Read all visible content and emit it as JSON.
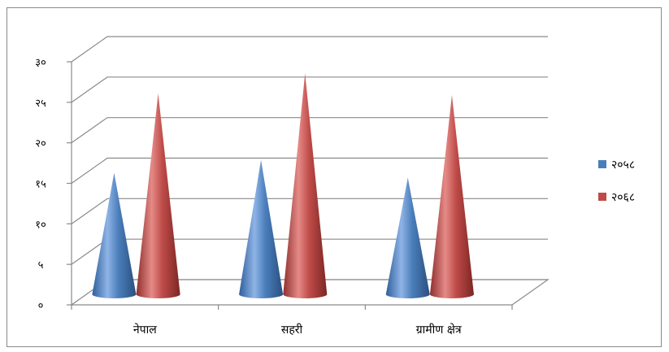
{
  "chart_data": {
    "type": "bar",
    "style": "3d-cone",
    "categories": [
      "नेपाल",
      "सहरी",
      "ग्रामीण क्षेत्र"
    ],
    "series": [
      {
        "name": "२०५८",
        "values": [
          15.2,
          16.8,
          14.6
        ],
        "color": "#4a7ebb"
      },
      {
        "name": "२०६८",
        "values": [
          25.0,
          27.5,
          24.8
        ],
        "color": "#be4b48"
      }
    ],
    "yticks": [
      "०",
      "५",
      "१०",
      "१५",
      "२०",
      "२५",
      "३०"
    ],
    "ylim": [
      0,
      30
    ],
    "grid": true,
    "legend": "right"
  }
}
